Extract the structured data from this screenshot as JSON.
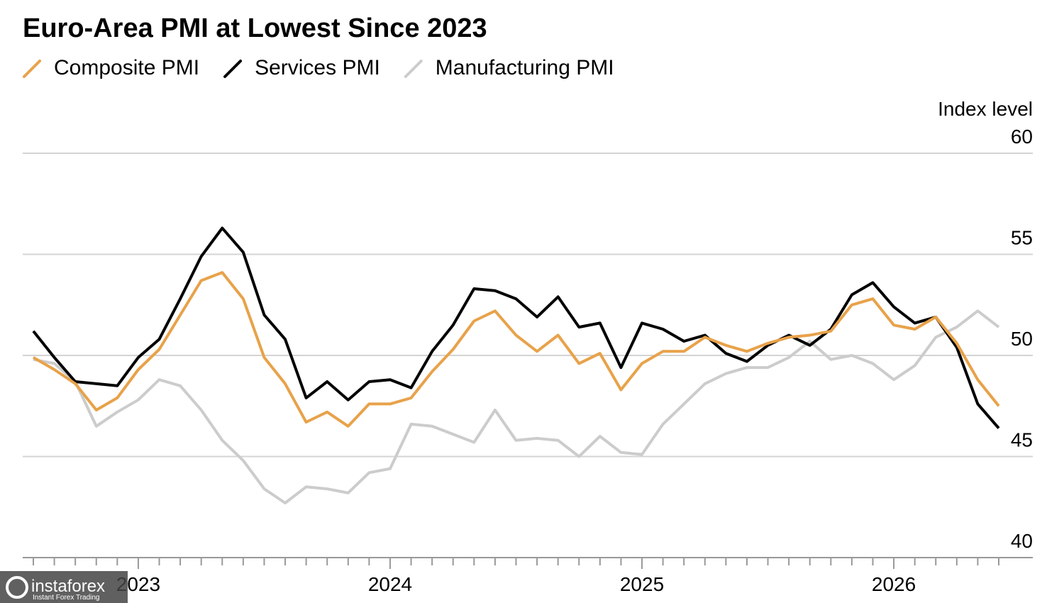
{
  "chart_data": {
    "type": "line",
    "title": "Euro-Area PMI at Lowest Since 2023",
    "y_label": "Index level",
    "categories": [
      null,
      null,
      null,
      null,
      null,
      "2023",
      null,
      null,
      null,
      null,
      null,
      null,
      null,
      null,
      null,
      null,
      null,
      "2024",
      null,
      null,
      null,
      null,
      null,
      null,
      null,
      null,
      null,
      null,
      null,
      "2025",
      null,
      null,
      null,
      null,
      null,
      null,
      null,
      null,
      null,
      null,
      null,
      "2026",
      null,
      null,
      null,
      null,
      null
    ],
    "series": [
      {
        "name": "Composite PMI",
        "color": "#e8a24a",
        "values": [
          49.9,
          49.3,
          48.6,
          47.3,
          47.9,
          49.3,
          50.3,
          52.0,
          53.7,
          54.1,
          52.8,
          49.9,
          48.6,
          46.7,
          47.2,
          46.5,
          47.6,
          47.6,
          47.9,
          49.2,
          50.3,
          51.7,
          52.2,
          51.0,
          50.2,
          51.0,
          49.6,
          50.1,
          48.3,
          49.6,
          50.2,
          50.2,
          50.9,
          50.5,
          50.2,
          50.6,
          50.9,
          51.0,
          51.2,
          52.5,
          52.8,
          51.5,
          51.3,
          51.9,
          50.6,
          48.8,
          47.5
        ]
      },
      {
        "name": "Services PMI",
        "color": "#000000",
        "values": [
          51.2,
          49.9,
          48.7,
          48.6,
          48.5,
          49.9,
          50.8,
          52.8,
          54.9,
          56.3,
          55.1,
          52.0,
          50.8,
          47.9,
          48.7,
          47.8,
          48.7,
          48.8,
          48.4,
          50.2,
          51.5,
          53.3,
          53.2,
          52.8,
          51.9,
          52.9,
          51.4,
          51.6,
          49.4,
          51.6,
          51.3,
          50.7,
          51.0,
          50.1,
          49.7,
          50.5,
          51.0,
          50.5,
          51.3,
          53.0,
          53.6,
          52.4,
          51.6,
          51.9,
          50.4,
          47.6,
          46.4
        ]
      },
      {
        "name": "Manufacturing PMI",
        "color": "#cccccc",
        "values": [
          49.8,
          49.6,
          48.7,
          46.5,
          47.2,
          47.8,
          48.8,
          48.5,
          47.3,
          45.8,
          44.8,
          43.4,
          42.7,
          43.5,
          43.4,
          43.2,
          44.2,
          44.4,
          46.6,
          46.5,
          46.1,
          45.7,
          47.3,
          45.8,
          45.9,
          45.8,
          45.0,
          46.0,
          45.2,
          45.1,
          46.6,
          47.6,
          48.6,
          49.1,
          49.4,
          49.4,
          49.9,
          50.7,
          49.8,
          50.0,
          49.6,
          48.8,
          49.5,
          50.9,
          51.4,
          52.2,
          51.4
        ]
      }
    ],
    "ylim": [
      40,
      60
    ],
    "yticks": [
      40,
      45,
      50,
      55,
      60
    ],
    "grid": true
  },
  "watermark": {
    "brand": "instaforex",
    "tagline": "Instant Forex Trading"
  }
}
